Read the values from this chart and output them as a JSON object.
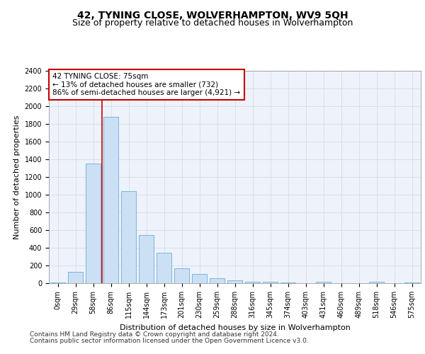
{
  "title": "42, TYNING CLOSE, WOLVERHAMPTON, WV9 5QH",
  "subtitle": "Size of property relative to detached houses in Wolverhampton",
  "xlabel": "Distribution of detached houses by size in Wolverhampton",
  "ylabel": "Number of detached properties",
  "bar_color": "#cce0f5",
  "bar_edge_color": "#6aaed6",
  "vline_color": "#cc0000",
  "vline_x": 2.5,
  "annotation_text": "42 TYNING CLOSE: 75sqm\n← 13% of detached houses are smaller (732)\n86% of semi-detached houses are larger (4,921) →",
  "annotation_box_facecolor": "#ffffff",
  "annotation_box_edgecolor": "#cc0000",
  "categories": [
    "0sqm",
    "29sqm",
    "58sqm",
    "86sqm",
    "115sqm",
    "144sqm",
    "173sqm",
    "201sqm",
    "230sqm",
    "259sqm",
    "288sqm",
    "316sqm",
    "345sqm",
    "374sqm",
    "403sqm",
    "431sqm",
    "460sqm",
    "489sqm",
    "518sqm",
    "546sqm",
    "575sqm"
  ],
  "values": [
    10,
    130,
    1350,
    1880,
    1040,
    545,
    345,
    170,
    105,
    58,
    30,
    20,
    15,
    12,
    0,
    20,
    0,
    0,
    20,
    0,
    10
  ],
  "ylim": [
    0,
    2400
  ],
  "yticks": [
    0,
    200,
    400,
    600,
    800,
    1000,
    1200,
    1400,
    1600,
    1800,
    2000,
    2200,
    2400
  ],
  "grid_color": "#d0d8e8",
  "background_color": "#eef2fa",
  "footer_line1": "Contains HM Land Registry data © Crown copyright and database right 2024.",
  "footer_line2": "Contains public sector information licensed under the Open Government Licence v3.0.",
  "title_fontsize": 10,
  "subtitle_fontsize": 9,
  "axis_label_fontsize": 8,
  "tick_fontsize": 7,
  "annotation_fontsize": 7.5,
  "footer_fontsize": 6.5
}
